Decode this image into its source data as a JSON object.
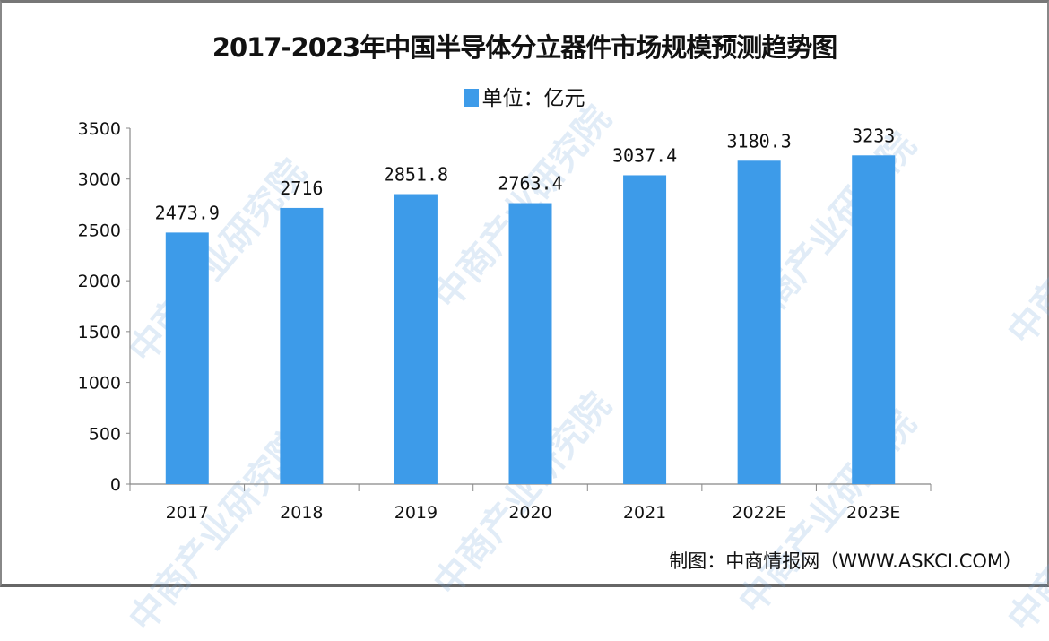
{
  "chart_data": {
    "type": "bar",
    "title": "2017-2023年中国半导体分立器件市场规模预测趋势图",
    "categories": [
      "2017",
      "2018",
      "2019",
      "2020",
      "2021",
      "2022E",
      "2023E"
    ],
    "series": [
      {
        "name": "单位：亿元",
        "values": [
          2473.9,
          2716,
          2851.8,
          2763.4,
          3037.4,
          3180.3,
          3233
        ]
      }
    ],
    "data_labels": [
      "2473.9",
      "2716",
      "2851.8",
      "2763.4",
      "3037.4",
      "3180.3",
      "3233"
    ],
    "yticks": [
      0,
      500,
      1000,
      1500,
      2000,
      2500,
      3000,
      3500
    ],
    "ylim": [
      0,
      3500
    ],
    "grid": false,
    "legend_position": "top-center",
    "bar_color": "#3d9be9",
    "xlabel": "",
    "ylabel": ""
  },
  "source": "制图：中商情报网（WWW.ASKCI.COM）",
  "watermark": "中商产业研究院"
}
